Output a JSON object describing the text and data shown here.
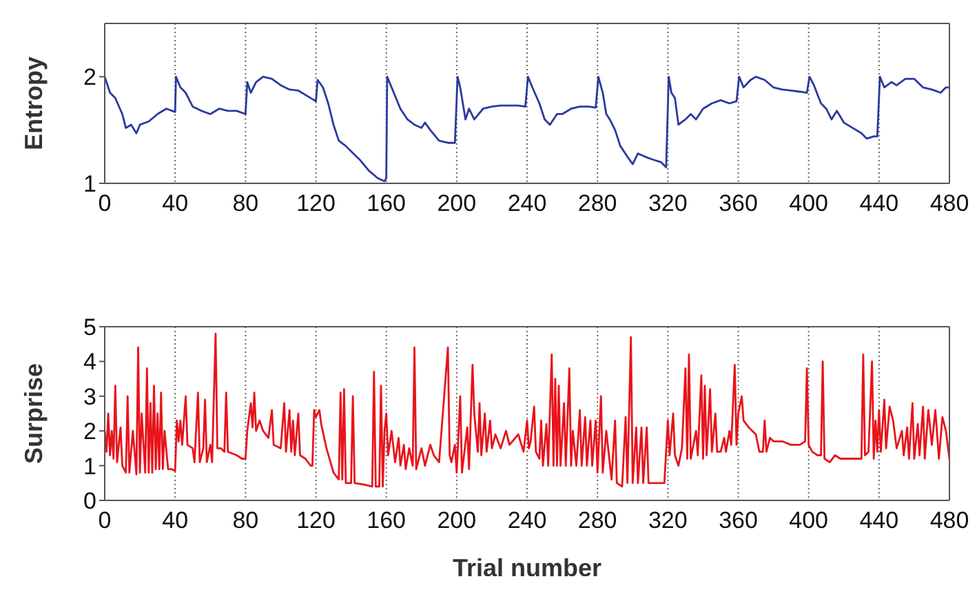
{
  "chart_data": [
    {
      "type": "line",
      "ylabel": "Entropy",
      "xlim": [
        0,
        480
      ],
      "xticks": [
        0,
        40,
        80,
        120,
        160,
        200,
        240,
        280,
        320,
        360,
        400,
        440,
        480
      ],
      "ylim": [
        1,
        2.5
      ],
      "yticks": [
        1,
        2
      ],
      "grid": "x",
      "line_style": "solid",
      "series": [
        {
          "color": "#2b3a9e",
          "x": [
            0,
            3,
            6,
            10,
            12,
            15,
            18,
            20,
            25,
            30,
            35,
            40,
            40.5,
            43,
            46,
            50,
            55,
            60,
            65,
            70,
            75,
            80,
            81,
            83,
            86,
            90,
            95,
            100,
            105,
            110,
            115,
            120,
            121,
            124,
            127,
            130,
            133,
            137,
            140,
            145,
            150,
            155,
            159,
            160,
            160.5,
            163,
            168,
            172,
            176,
            180,
            182,
            185,
            190,
            195,
            199,
            200.5,
            202,
            205,
            207,
            210,
            215,
            220,
            225,
            230,
            235,
            239,
            240.5,
            243,
            247,
            250,
            253,
            257,
            260,
            265,
            270,
            275,
            279,
            280.5,
            283,
            285,
            287,
            290,
            293,
            297,
            300,
            303,
            307,
            312,
            316,
            319,
            320.5,
            322,
            324,
            326,
            330,
            333,
            336,
            340,
            345,
            350,
            355,
            359,
            360.5,
            363,
            367,
            370,
            375,
            380,
            385,
            390,
            395,
            399,
            400.5,
            403,
            407,
            410,
            413,
            416,
            420,
            425,
            430,
            433,
            437,
            439,
            440.5,
            443,
            447,
            450,
            455,
            460,
            465,
            470,
            475,
            478,
            480
          ],
          "values": [
            2.0,
            1.85,
            1.8,
            1.65,
            1.52,
            1.55,
            1.47,
            1.55,
            1.58,
            1.65,
            1.7,
            1.67,
            2.0,
            1.9,
            1.85,
            1.72,
            1.68,
            1.65,
            1.7,
            1.68,
            1.68,
            1.65,
            1.95,
            1.85,
            1.95,
            2.0,
            1.98,
            1.92,
            1.88,
            1.87,
            1.82,
            1.77,
            1.97,
            1.9,
            1.75,
            1.55,
            1.4,
            1.35,
            1.3,
            1.22,
            1.12,
            1.05,
            1.02,
            1.05,
            2.0,
            1.9,
            1.7,
            1.6,
            1.55,
            1.52,
            1.57,
            1.5,
            1.4,
            1.38,
            1.38,
            2.0,
            1.9,
            1.6,
            1.7,
            1.6,
            1.7,
            1.72,
            1.73,
            1.73,
            1.73,
            1.72,
            2.0,
            1.9,
            1.75,
            1.6,
            1.55,
            1.65,
            1.65,
            1.7,
            1.72,
            1.72,
            1.71,
            2.0,
            1.85,
            1.65,
            1.6,
            1.5,
            1.35,
            1.25,
            1.18,
            1.28,
            1.25,
            1.22,
            1.2,
            1.15,
            2.0,
            1.85,
            1.8,
            1.55,
            1.6,
            1.65,
            1.6,
            1.7,
            1.75,
            1.78,
            1.75,
            1.77,
            2.0,
            1.9,
            1.97,
            2.0,
            1.97,
            1.9,
            1.88,
            1.87,
            1.86,
            1.85,
            2.0,
            1.92,
            1.75,
            1.7,
            1.6,
            1.68,
            1.57,
            1.52,
            1.47,
            1.42,
            1.44,
            1.44,
            2.0,
            1.9,
            1.95,
            1.92,
            1.98,
            1.98,
            1.9,
            1.88,
            1.85,
            1.9,
            1.9
          ]
        }
      ]
    },
    {
      "type": "line",
      "ylabel": "Surprise",
      "xlabel": "Trial number",
      "xlim": [
        0,
        480
      ],
      "xticks": [
        0,
        40,
        80,
        120,
        160,
        200,
        240,
        280,
        320,
        360,
        400,
        440,
        480
      ],
      "ylim": [
        0,
        5
      ],
      "yticks": [
        0,
        1,
        2,
        3,
        4,
        5
      ],
      "grid": "x",
      "line_style": "solid",
      "series": [
        {
          "color": "#e8141c",
          "x": [
            0,
            1,
            2,
            3,
            4,
            5,
            6,
            7,
            9,
            10,
            12,
            13,
            14,
            16,
            18,
            19,
            20,
            21,
            23,
            24,
            25,
            26,
            27,
            28,
            29,
            30,
            31,
            32,
            33,
            34,
            36,
            38,
            40,
            41,
            42,
            43,
            44,
            46,
            47,
            50,
            51,
            53,
            54,
            56,
            57,
            58,
            60,
            61,
            63,
            64,
            66,
            68,
            69,
            70,
            75,
            78,
            80,
            81,
            83,
            84,
            85,
            86,
            88,
            90,
            93,
            95,
            96,
            100,
            102,
            103,
            105,
            106,
            107,
            108,
            110,
            111,
            114,
            117,
            118,
            119,
            120,
            122,
            123,
            126,
            130,
            133,
            134,
            135,
            136,
            137,
            140,
            141,
            142,
            148,
            152,
            153,
            154,
            156,
            157,
            158,
            159,
            160,
            161,
            163,
            165,
            167,
            168,
            170,
            171,
            173,
            175,
            176,
            177,
            180,
            182,
            185,
            187,
            190,
            195,
            196,
            197,
            199,
            200,
            202,
            203,
            206,
            207,
            209,
            210,
            212,
            213,
            214,
            216,
            217,
            219,
            220,
            222,
            225,
            228,
            230,
            235,
            238,
            240,
            241,
            242,
            243,
            244,
            245,
            247,
            248,
            249,
            251,
            252,
            254,
            255,
            256,
            257,
            258,
            259,
            261,
            262,
            264,
            265,
            266,
            268,
            270,
            271,
            273,
            274,
            276,
            277,
            279,
            280,
            282,
            283,
            285,
            288,
            290,
            291,
            294,
            296,
            297,
            299,
            300,
            302,
            303,
            305,
            306,
            308,
            309,
            312,
            318,
            320,
            321,
            323,
            324,
            326,
            328,
            330,
            331,
            332,
            333,
            336,
            337,
            339,
            340,
            341,
            342,
            344,
            345,
            347,
            348,
            350,
            352,
            353,
            355,
            356,
            358,
            359,
            360,
            362,
            363,
            366,
            370,
            372,
            374,
            375,
            376,
            378,
            380,
            385,
            390,
            395,
            398,
            399,
            400,
            402,
            405,
            407,
            408,
            409,
            412,
            415,
            418,
            422,
            426,
            430,
            431,
            432,
            434,
            436,
            437,
            438,
            439,
            440,
            441,
            443,
            444,
            446,
            448,
            450,
            453,
            454,
            456,
            457,
            459,
            460,
            462,
            463,
            465,
            466,
            468,
            470,
            472,
            474,
            476,
            478,
            480
          ],
          "values": [
            2.0,
            1.4,
            2.5,
            1.3,
            2.0,
            1.2,
            3.3,
            1.1,
            2.1,
            1.0,
            0.8,
            3.0,
            0.8,
            2.0,
            0.75,
            4.4,
            0.8,
            2.5,
            0.8,
            3.8,
            0.8,
            2.8,
            0.8,
            3.3,
            0.9,
            2.5,
            0.9,
            3.1,
            0.9,
            2.0,
            0.9,
            0.9,
            0.85,
            2.3,
            1.7,
            2.3,
            1.6,
            3.0,
            1.6,
            1.5,
            1.1,
            3.1,
            1.1,
            1.5,
            2.9,
            1.1,
            1.6,
            1.1,
            4.8,
            1.5,
            1.5,
            1.4,
            3.1,
            1.4,
            1.3,
            1.2,
            1.2,
            2.0,
            2.8,
            2.1,
            3.1,
            2.0,
            2.3,
            2.0,
            1.8,
            2.6,
            1.6,
            1.5,
            2.8,
            1.4,
            2.6,
            1.4,
            2.3,
            1.3,
            2.5,
            1.3,
            1.2,
            1.0,
            1.0,
            2.6,
            2.4,
            2.6,
            2.2,
            1.5,
            0.8,
            0.6,
            3.1,
            0.6,
            3.2,
            0.5,
            0.5,
            3.0,
            0.5,
            0.45,
            0.4,
            3.7,
            0.4,
            0.4,
            3.3,
            0.4,
            2.0,
            2.5,
            1.3,
            2.0,
            1.1,
            1.8,
            1.0,
            1.6,
            0.9,
            1.5,
            1.0,
            4.4,
            0.9,
            1.5,
            1.0,
            1.6,
            1.3,
            1.1,
            4.4,
            1.3,
            1.1,
            1.6,
            0.8,
            3.0,
            0.8,
            2.1,
            0.9,
            3.9,
            2.5,
            1.4,
            2.8,
            1.3,
            2.5,
            1.4,
            2.3,
            1.5,
            1.9,
            1.5,
            2.0,
            1.6,
            1.9,
            1.4,
            2.3,
            1.5,
            1.7,
            2.2,
            2.7,
            1.4,
            1.2,
            2.3,
            1.0,
            2.2,
            1.0,
            4.2,
            1.0,
            3.5,
            1.0,
            3.3,
            1.0,
            2.8,
            1.0,
            3.8,
            1.0,
            2.0,
            1.0,
            2.6,
            1.0,
            2.4,
            1.0,
            2.3,
            1.0,
            2.3,
            0.8,
            3.0,
            0.8,
            2.0,
            0.6,
            2.3,
            0.5,
            0.4,
            2.4,
            0.5,
            4.7,
            0.5,
            2.1,
            0.5,
            2.1,
            0.5,
            2.1,
            0.5,
            0.5,
            0.5,
            2.3,
            1.3,
            2.5,
            1.3,
            1.0,
            1.5,
            3.8,
            1.2,
            4.2,
            1.2,
            2.0,
            1.3,
            3.6,
            1.2,
            3.3,
            1.3,
            3.2,
            1.4,
            2.5,
            1.4,
            1.4,
            1.8,
            1.4,
            2.0,
            1.6,
            3.9,
            1.6,
            2.5,
            3.0,
            2.3,
            2.1,
            1.9,
            1.4,
            1.4,
            2.3,
            1.4,
            1.8,
            1.7,
            1.7,
            1.6,
            1.6,
            1.7,
            3.8,
            1.6,
            1.4,
            1.3,
            1.3,
            4.0,
            1.2,
            1.1,
            1.3,
            1.2,
            1.2,
            1.2,
            1.2,
            4.2,
            1.3,
            1.4,
            4.0,
            1.2,
            2.3,
            1.4,
            2.6,
            1.4,
            2.9,
            1.5,
            2.7,
            2.3,
            1.5,
            2.0,
            1.3,
            2.1,
            1.2,
            2.8,
            1.2,
            2.2,
            1.3,
            2.7,
            1.2,
            2.6,
            1.6,
            2.6,
            1.2,
            2.4,
            2.0,
            1.2
          ]
        }
      ]
    }
  ]
}
